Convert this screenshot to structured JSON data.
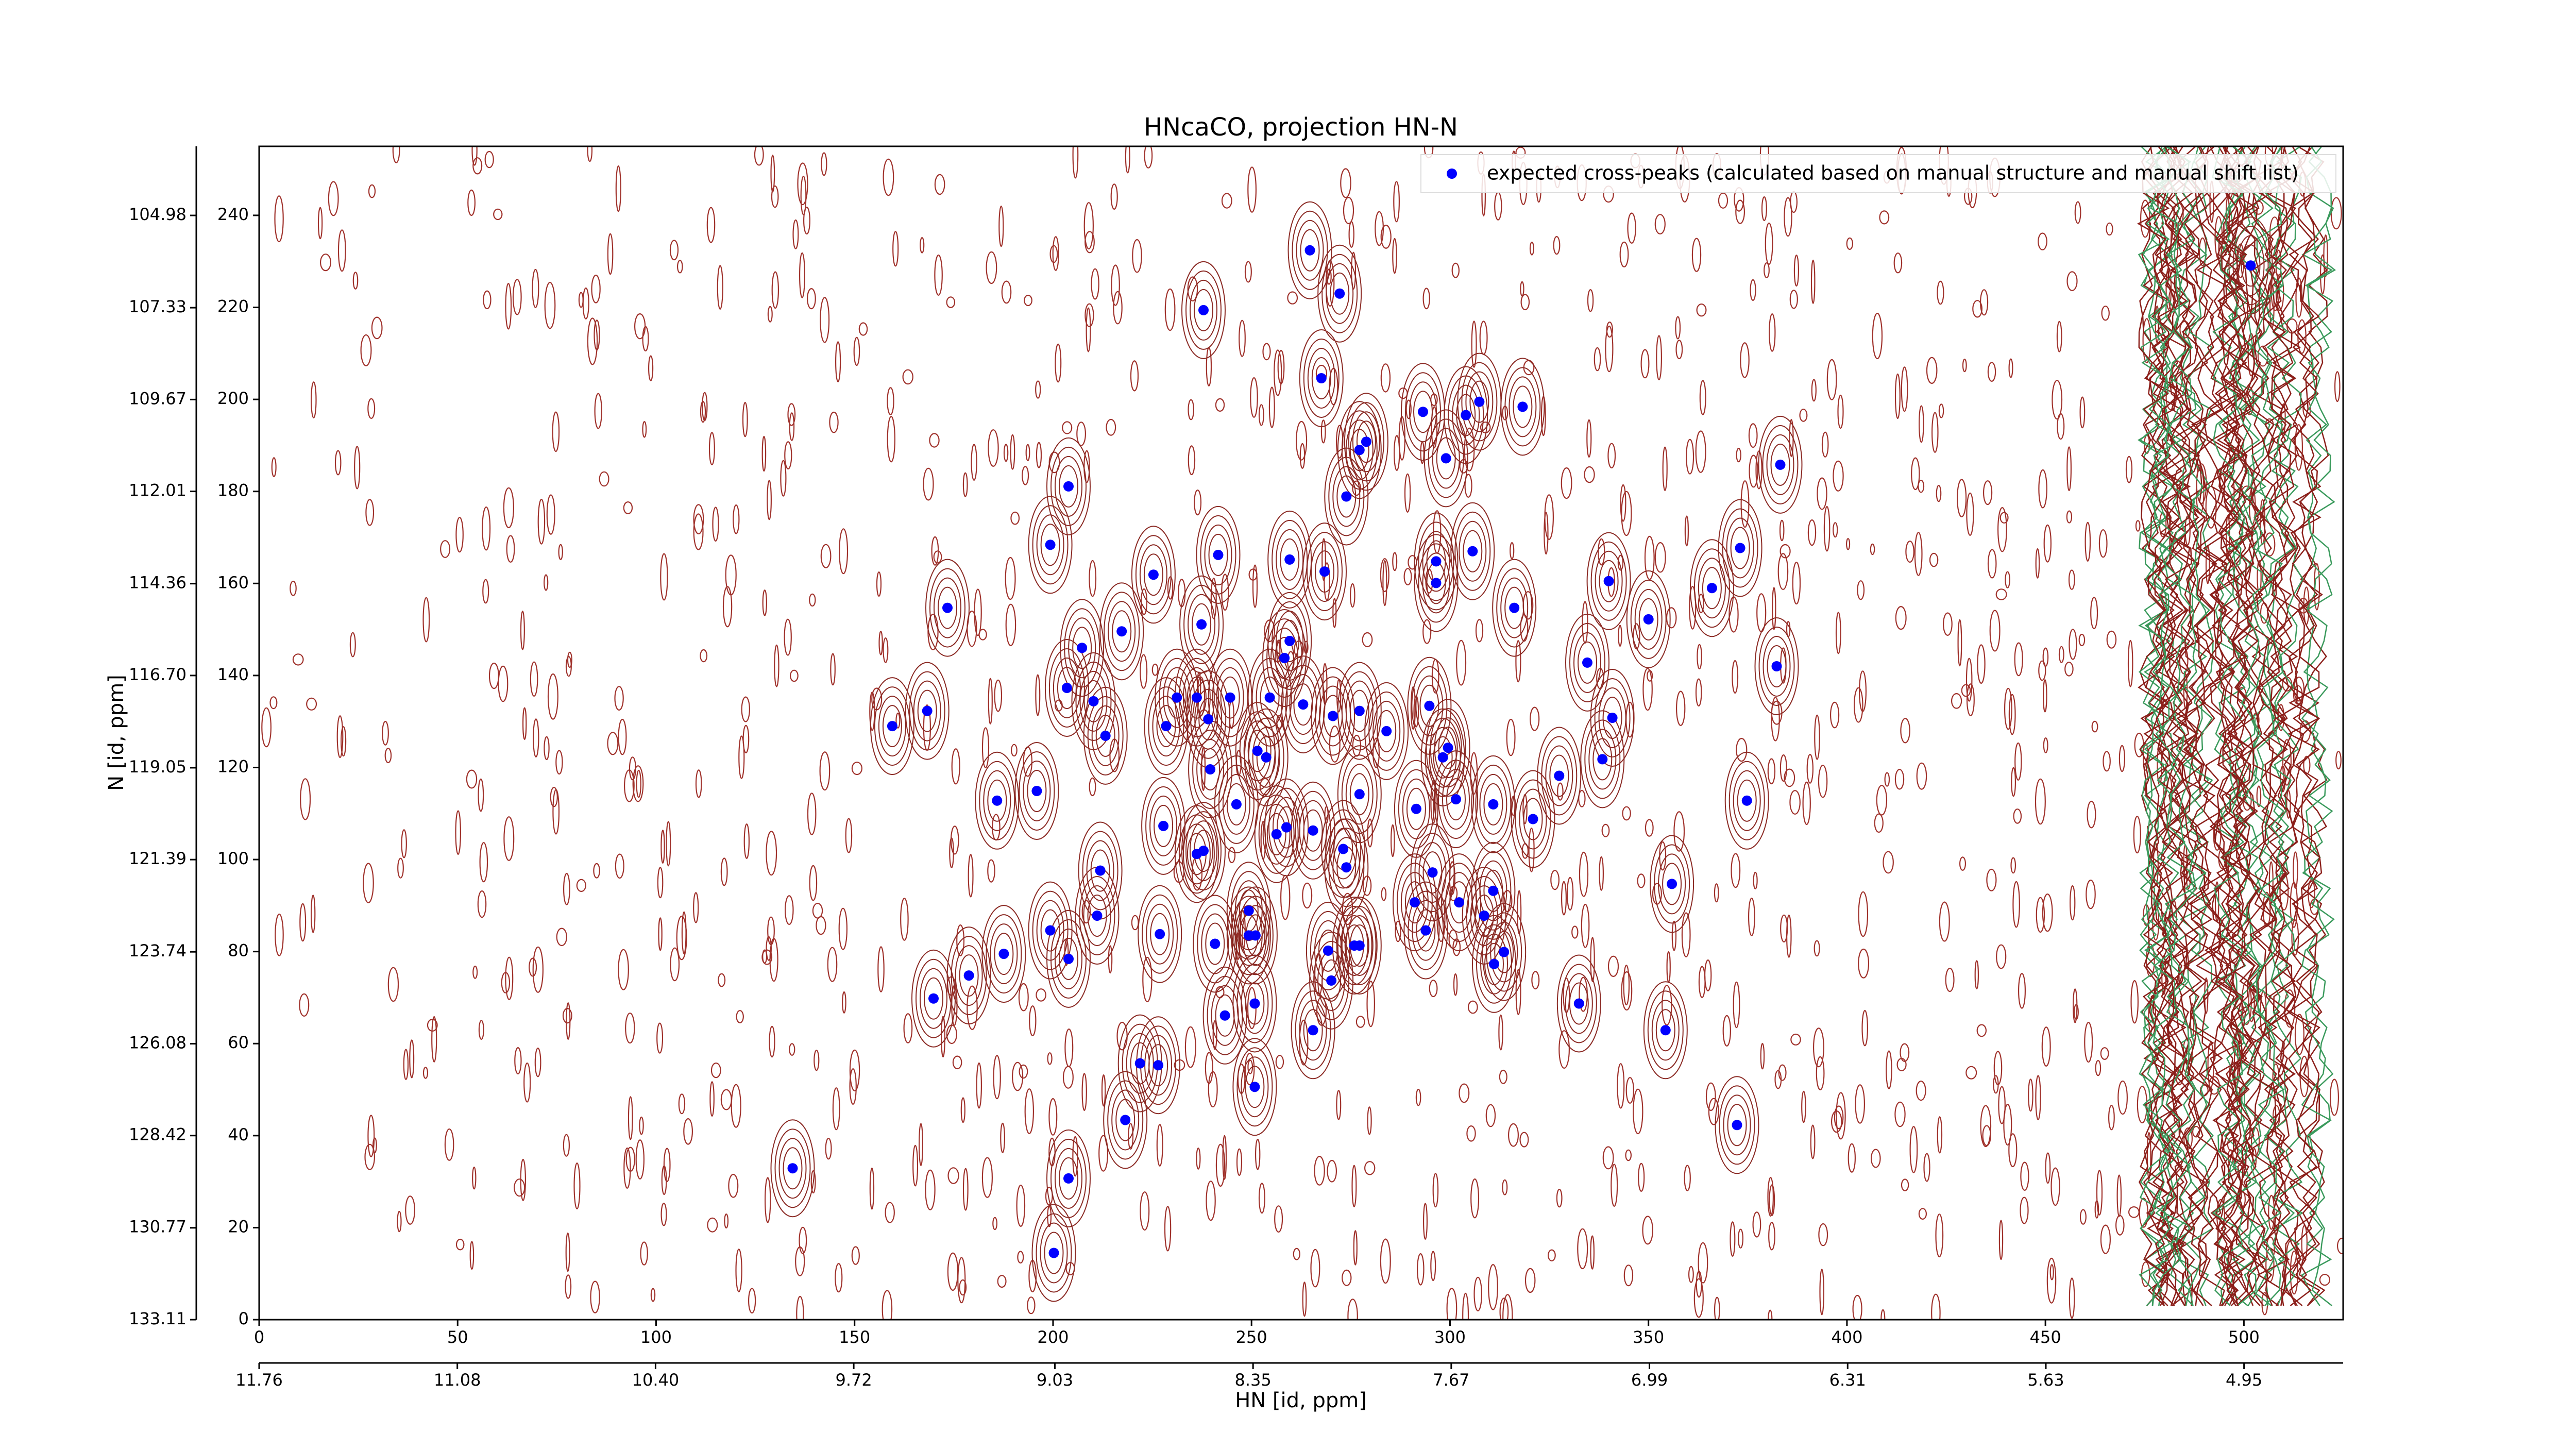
{
  "chart_data": {
    "type": "scatter",
    "title": "HNcaCO, projection HN-N",
    "x_label": "HN [id, ppm]",
    "y_label": "N [id, ppm]",
    "xlim": [
      0,
      525
    ],
    "ylim": [
      0,
      255
    ],
    "xticks": [
      0,
      50,
      100,
      150,
      200,
      250,
      300,
      350,
      400,
      450,
      500
    ],
    "yticks": [
      0,
      20,
      40,
      60,
      80,
      100,
      120,
      140,
      160,
      180,
      200,
      220,
      240
    ],
    "x2lim": [
      11.76,
      4.61
    ],
    "x2ticks": [
      11.76,
      11.08,
      {
        "value": 10.4,
        "label": "10.40"
      },
      9.72,
      9.03,
      8.35,
      7.67,
      6.99,
      6.31,
      5.63,
      4.95
    ],
    "y2lim": [
      133.11,
      103.22
    ],
    "y2ticks": [
      133.11,
      130.77,
      128.42,
      126.08,
      123.74,
      121.39,
      119.05,
      {
        "value": 116.7,
        "label": "116.70"
      },
      114.36,
      112.01,
      109.67,
      107.33,
      104.98
    ],
    "legend": "upper right",
    "series": [
      {
        "name": "expected cross-peaks (calculated based on manual structure and manual shift list)",
        "color": "#0000ff",
        "x": [
          264.7,
          272.2,
          237.9,
          267.6,
          501.7,
          293.2,
          307.4,
          304,
          318.3,
          278.9,
          277.2,
          299,
          383.2,
          203.9,
          273.9,
          199.3,
          373.1,
          241.6,
          259.6,
          268.4,
          225.3,
          296.5,
          305.7,
          296.5,
          340,
          366,
          173.4,
          316.2,
          237.4,
          217.3,
          350,
          259.6,
          207.3,
          258.3,
          334.6,
          382.3,
          203.5,
          168.3,
          159.5,
          210.2,
          231.2,
          236.2,
          244.6,
          254.6,
          263,
          270.5,
          277.2,
          294.8,
          340.9,
          228.5,
          239.1,
          213.2,
          284,
          299.5,
          298.2,
          251.5,
          253.7,
          338.4,
          239.6,
          327.5,
          195.9,
          185.9,
          246.2,
          277.2,
          291.5,
          301.5,
          310.9,
          320.9,
          374.8,
          227.8,
          258.8,
          256.3,
          265.5,
          273.1,
          236.2,
          237.9,
          211.9,
          295.6,
          273.9,
          310.9,
          355.9,
          291.1,
          302.3,
          308.6,
          211.1,
          249.3,
          199.3,
          226.9,
          293.9,
          249.3,
          251,
          240.8,
          269.3,
          275.9,
          277.2,
          313.6,
          187.6,
          203.9,
          311.1,
          178.8,
          270.1,
          169.9,
          250.8,
          332.5,
          243.3,
          265.5,
          354.3,
          221.9,
          226.5,
          250.8,
          218.2,
          372.3,
          134.4,
          203.9,
          200.2
        ],
        "values": [
          232.4,
          223,
          219.4,
          204.6,
          229.1,
          197.3,
          199.5,
          196.6,
          198.4,
          190.8,
          189,
          187.2,
          185.8,
          181.1,
          178.9,
          168.4,
          167.7,
          166.2,
          165.2,
          162.6,
          161.9,
          164.8,
          167,
          160.1,
          160.5,
          159,
          154.7,
          154.7,
          151.1,
          149.6,
          152.2,
          147.5,
          146,
          143.8,
          142.8,
          142,
          137.3,
          132.3,
          129,
          134.4,
          135.2,
          135.2,
          135.2,
          135.2,
          133.7,
          131.2,
          132.3,
          133.4,
          130.8,
          129,
          130.5,
          126.9,
          127.9,
          124.3,
          122.2,
          123.6,
          122.2,
          121.8,
          119.6,
          118.2,
          114.9,
          112.8,
          112,
          114.2,
          111,
          113.1,
          112,
          108.8,
          112.8,
          107.3,
          107,
          105.5,
          106.3,
          102.3,
          101.2,
          101.9,
          97.6,
          97.2,
          98.3,
          93.2,
          94.7,
          90.7,
          90.7,
          87.8,
          87.8,
          88.9,
          84.6,
          83.8,
          84.6,
          83.5,
          83.5,
          81.7,
          80.2,
          81.3,
          81.3,
          79.9,
          79.5,
          78.4,
          77.3,
          74.8,
          73.7,
          69.8,
          68.7,
          68.7,
          66.1,
          62.9,
          62.9,
          55.7,
          55.3,
          50.6,
          43.4,
          42.3,
          32.9,
          30.7,
          14.5
        ]
      }
    ]
  }
}
